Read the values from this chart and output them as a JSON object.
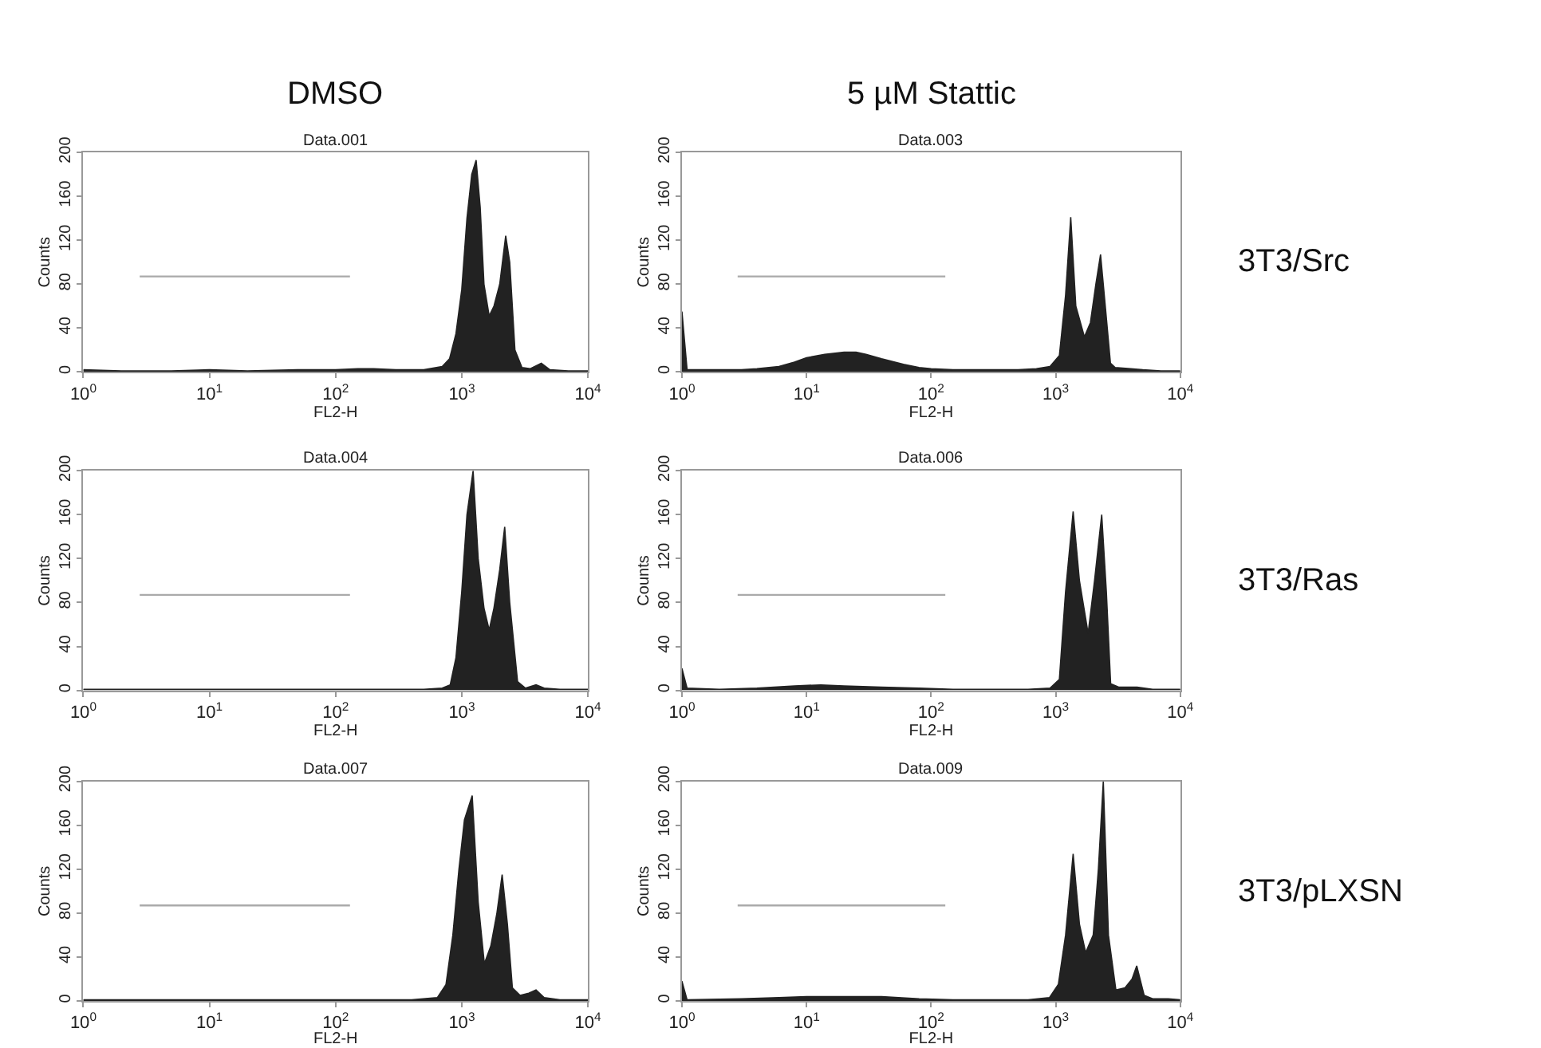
{
  "chart_data": [
    {
      "type": "area",
      "title": "Data.001",
      "xlabel": "FL2-H",
      "ylabel": "Counts",
      "log": "x",
      "xlim": [
        1,
        10000
      ],
      "ylim": [
        0,
        200
      ],
      "xticks": [
        {
          "value": 1,
          "label": "10$^{0}$"
        },
        {
          "value": 10,
          "label": "10$^{1}$"
        },
        {
          "value": 100,
          "label": "10$^{2}$"
        },
        {
          "value": 1000,
          "label": "10$^{3}$"
        },
        {
          "value": 10000,
          "label": "10$^{4}$"
        }
      ],
      "yticks": [
        0,
        40,
        80,
        120,
        160,
        200
      ],
      "annotations": [
        "DMSO"
      ],
      "series": [
        {
          "color": "#222222",
          "x": [
            1,
            2,
            5,
            10,
            20,
            50,
            100,
            150,
            200,
            300,
            500,
            700,
            800,
            900,
            1000,
            1100,
            1200,
            1300,
            1400,
            1500,
            1650,
            1800,
            2000,
            2230,
            2400,
            2640,
            3000,
            3500,
            4270,
            5000,
            7000,
            10000
          ],
          "values": [
            2,
            1,
            1,
            2,
            1,
            2,
            2,
            3,
            3,
            2,
            2,
            5,
            12,
            35,
            75,
            140,
            180,
            193,
            150,
            80,
            51,
            60,
            80,
            124,
            100,
            20,
            4,
            3,
            8,
            2,
            1,
            1
          ]
        },
        {
          "type": "line",
          "color": "#aaaaaa",
          "x": [
            2.8,
            130
          ],
          "values": [
            87,
            87
          ]
        }
      ]
    },
    {
      "type": "area",
      "title": "Data.003",
      "xlabel": "FL2-H",
      "ylabel": "Counts",
      "log": "x",
      "xlim": [
        1,
        10000
      ],
      "ylim": [
        0,
        200
      ],
      "xticks": [
        {
          "value": 1,
          "label": "10$^{0}$"
        },
        {
          "value": 10,
          "label": "10$^{1}$"
        },
        {
          "value": 100,
          "label": "10$^{2}$"
        },
        {
          "value": 1000,
          "label": "10$^{3}$"
        },
        {
          "value": 10000,
          "label": "10$^{4}$"
        }
      ],
      "yticks": [
        0,
        40,
        80,
        120,
        160,
        200
      ],
      "annotations": [
        "5 µM Stattic",
        "3T3/Src"
      ],
      "series": [
        {
          "color": "#222222",
          "x": [
            1,
            1.1,
            2,
            3,
            4,
            6,
            8,
            10,
            14,
            20,
            25,
            30,
            40,
            60,
            80,
            100,
            150,
            200,
            300,
            500,
            700,
            900,
            1070,
            1200,
            1320,
            1450,
            1700,
            1900,
            2100,
            2290,
            2500,
            2750,
            3000,
            4000,
            5000,
            7000,
            10000
          ],
          "values": [
            55,
            2,
            2,
            2,
            3,
            5,
            9,
            13,
            16,
            18,
            18,
            16,
            12,
            7,
            4,
            3,
            2,
            2,
            2,
            2,
            3,
            5,
            15,
            70,
            141,
            60,
            32,
            45,
            80,
            107,
            60,
            8,
            4,
            3,
            2,
            1,
            1
          ]
        },
        {
          "type": "line",
          "color": "#aaaaaa",
          "x": [
            2.8,
            130
          ],
          "values": [
            87,
            87
          ]
        }
      ]
    },
    {
      "type": "area",
      "title": "Data.004",
      "xlabel": "FL2-H",
      "ylabel": "Counts",
      "log": "x",
      "xlim": [
        1,
        10000
      ],
      "ylim": [
        0,
        200
      ],
      "xticks": [
        {
          "value": 1,
          "label": "10$^{0}$"
        },
        {
          "value": 10,
          "label": "10$^{1}$"
        },
        {
          "value": 100,
          "label": "10$^{2}$"
        },
        {
          "value": 1000,
          "label": "10$^{3}$"
        },
        {
          "value": 10000,
          "label": "10$^{4}$"
        }
      ],
      "yticks": [
        0,
        40,
        80,
        120,
        160,
        200
      ],
      "series": [
        {
          "color": "#222222",
          "x": [
            1,
            2,
            5,
            10,
            20,
            50,
            100,
            200,
            500,
            700,
            810,
            900,
            1000,
            1100,
            1230,
            1350,
            1500,
            1650,
            1800,
            2000,
            2190,
            2400,
            2770,
            3200,
            3880,
            4500,
            6000,
            10000
          ],
          "values": [
            1,
            1,
            1,
            1,
            1,
            1,
            1,
            1,
            1,
            2,
            5,
            30,
            90,
            160,
            200,
            120,
            75,
            55,
            75,
            110,
            149,
            80,
            8,
            2,
            5,
            2,
            1,
            1
          ]
        },
        {
          "type": "line",
          "color": "#aaaaaa",
          "x": [
            2.8,
            130
          ],
          "values": [
            87,
            87
          ]
        }
      ]
    },
    {
      "type": "area",
      "title": "Data.006",
      "xlabel": "FL2-H",
      "ylabel": "Counts",
      "log": "x",
      "xlim": [
        1,
        10000
      ],
      "ylim": [
        0,
        200
      ],
      "xticks": [
        {
          "value": 1,
          "label": "10$^{0}$"
        },
        {
          "value": 10,
          "label": "10$^{1}$"
        },
        {
          "value": 100,
          "label": "10$^{2}$"
        },
        {
          "value": 1000,
          "label": "10$^{3}$"
        },
        {
          "value": 10000,
          "label": "10$^{4}$"
        }
      ],
      "yticks": [
        0,
        40,
        80,
        120,
        160,
        200
      ],
      "annotations": [
        "3T3/Ras"
      ],
      "series": [
        {
          "color": "#222222",
          "x": [
            1,
            1.1,
            2,
            4,
            8,
            13,
            20,
            40,
            80,
            150,
            300,
            600,
            900,
            1070,
            1200,
            1380,
            1550,
            1820,
            2050,
            2340,
            2550,
            2760,
            3200,
            4500,
            6000,
            10000
          ],
          "values": [
            20,
            2,
            1,
            2,
            4,
            5,
            4,
            3,
            2,
            1,
            1,
            1,
            2,
            10,
            90,
            163,
            100,
            52,
            100,
            160,
            90,
            6,
            3,
            3,
            1,
            1
          ]
        },
        {
          "type": "line",
          "color": "#aaaaaa",
          "x": [
            2.8,
            130
          ],
          "values": [
            87,
            87
          ]
        }
      ]
    },
    {
      "type": "area",
      "title": "Data.007",
      "xlabel": "FL2-H",
      "ylabel": "Counts",
      "log": "x",
      "xlim": [
        1,
        10000
      ],
      "ylim": [
        0,
        200
      ],
      "xticks": [
        {
          "value": 1,
          "label": "10$^{0}$"
        },
        {
          "value": 10,
          "label": "10$^{1}$"
        },
        {
          "value": 100,
          "label": "10$^{2}$"
        },
        {
          "value": 1000,
          "label": "10$^{3}$"
        },
        {
          "value": 10000,
          "label": "10$^{4}$"
        }
      ],
      "yticks": [
        0,
        40,
        80,
        120,
        160,
        200
      ],
      "series": [
        {
          "color": "#222222",
          "x": [
            1,
            2,
            5,
            10,
            20,
            50,
            100,
            200,
            400,
            640,
            750,
            850,
            950,
            1050,
            1210,
            1350,
            1510,
            1700,
            1900,
            2090,
            2300,
            2520,
            2900,
            3400,
            3880,
            4500,
            6000,
            10000
          ],
          "values": [
            1,
            1,
            1,
            1,
            1,
            1,
            1,
            1,
            1,
            3,
            15,
            60,
            120,
            165,
            187,
            90,
            34,
            50,
            80,
            115,
            70,
            12,
            5,
            7,
            10,
            3,
            1,
            1
          ]
        },
        {
          "type": "line",
          "color": "#aaaaaa",
          "x": [
            2.8,
            130
          ],
          "values": [
            87,
            87
          ]
        }
      ]
    },
    {
      "type": "area",
      "title": "Data.009",
      "xlabel": "FL2-H",
      "ylabel": "Counts",
      "log": "x",
      "xlim": [
        1,
        10000
      ],
      "ylim": [
        0,
        200
      ],
      "xticks": [
        {
          "value": 1,
          "label": "10$^{0}$"
        },
        {
          "value": 10,
          "label": "10$^{1}$"
        },
        {
          "value": 100,
          "label": "10$^{2}$"
        },
        {
          "value": 1000,
          "label": "10$^{3}$"
        },
        {
          "value": 10000,
          "label": "10$^{4}$"
        }
      ],
      "yticks": [
        0,
        40,
        80,
        120,
        160,
        200
      ],
      "annotations": [
        "3T3/pLXSN"
      ],
      "series": [
        {
          "color": "#222222",
          "x": [
            1,
            1.1,
            3,
            6,
            10,
            20,
            40,
            80,
            150,
            300,
            600,
            890,
            1050,
            1200,
            1380,
            1550,
            1740,
            2000,
            2200,
            2410,
            2650,
            3040,
            3600,
            4100,
            4470,
            5130,
            6000,
            8000,
            10000
          ],
          "values": [
            18,
            1,
            2,
            3,
            4,
            4,
            4,
            2,
            1,
            1,
            1,
            3,
            15,
            60,
            134,
            70,
            44,
            60,
            120,
            200,
            60,
            10,
            12,
            20,
            32,
            5,
            2,
            2,
            1
          ]
        },
        {
          "type": "line",
          "color": "#aaaaaa",
          "x": [
            2.8,
            130
          ],
          "values": [
            87,
            87
          ]
        }
      ]
    }
  ]
}
